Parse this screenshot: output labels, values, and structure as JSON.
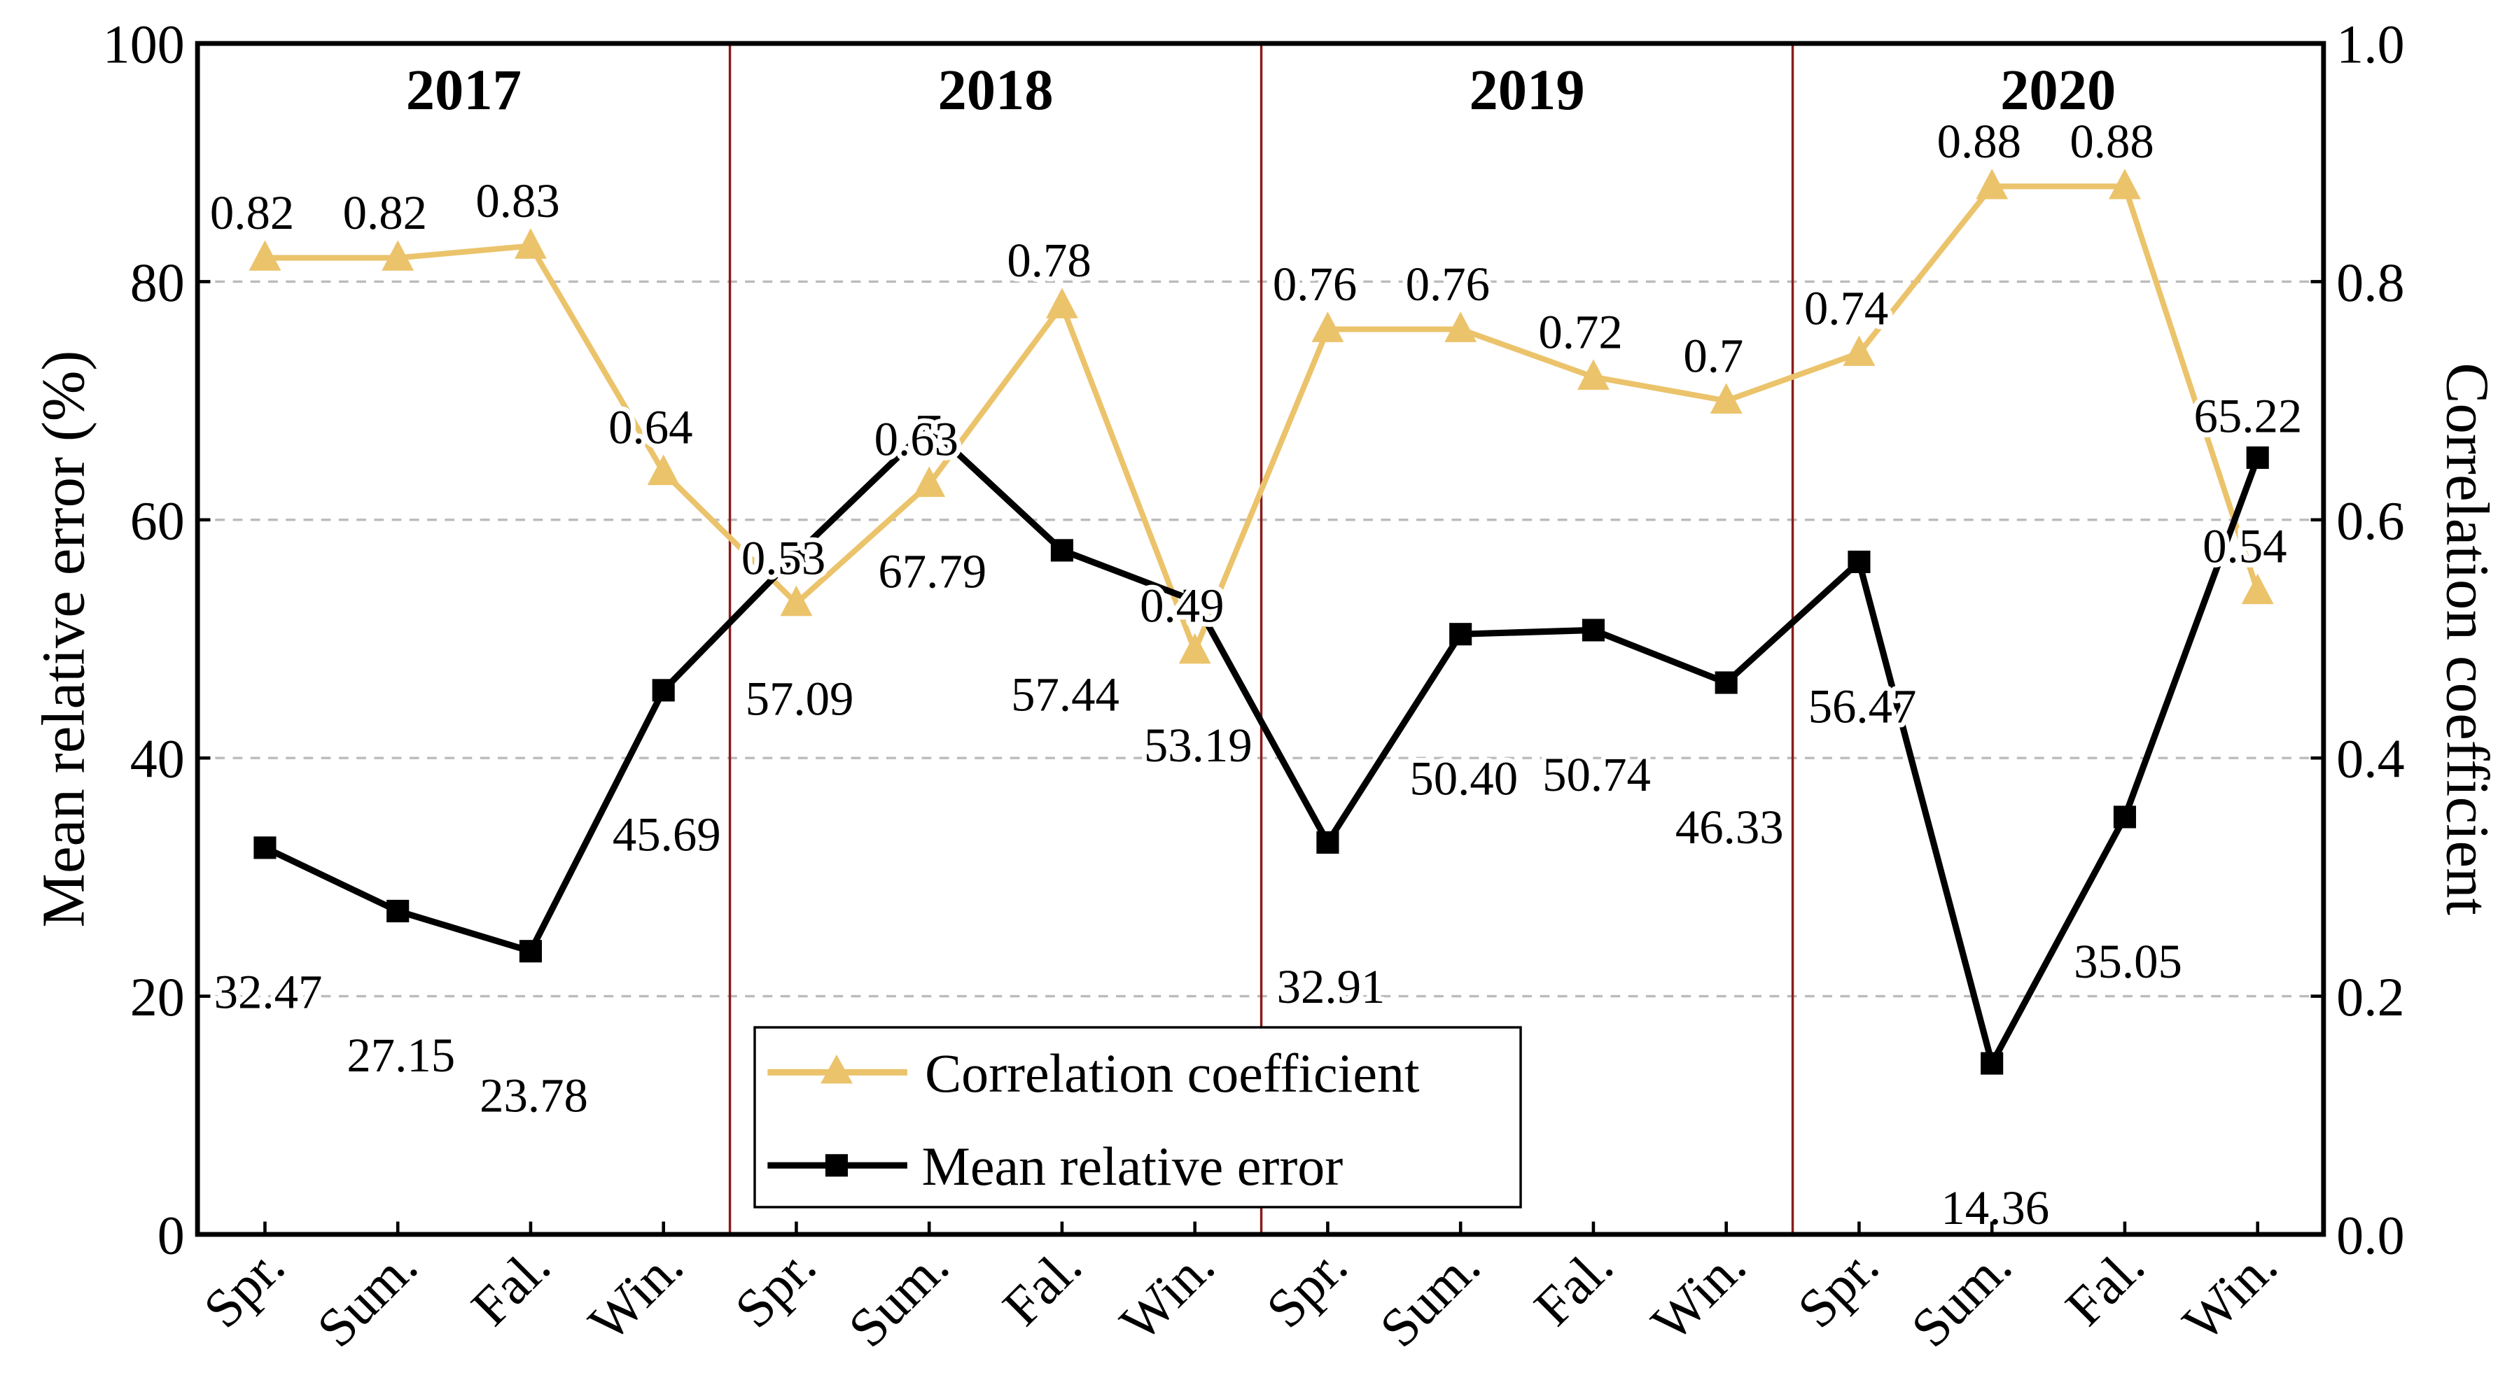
{
  "chart_data": {
    "type": "line",
    "years": [
      "2017",
      "2018",
      "2019",
      "2020"
    ],
    "categories": [
      "Spr.",
      "Sum.",
      "Fal.",
      "Win.",
      "Spr.",
      "Sum.",
      "Fal.",
      "Win.",
      "Spr.",
      "Sum.",
      "Fal.",
      "Win.",
      "Spr.",
      "Sum.",
      "Fal.",
      "Win."
    ],
    "ylabel": "Mean relative error (%)",
    "y2label": "Correlation coefficient",
    "ylim": [
      0,
      100
    ],
    "y2lim": [
      0,
      1.0
    ],
    "yticks": [
      "0",
      "20",
      "40",
      "60",
      "80",
      "100"
    ],
    "y2ticks": [
      "0.0",
      "0.2",
      "0.4",
      "0.6",
      "0.8",
      "1.0"
    ],
    "grid": "horizontal dashed",
    "legend_position": "bottom-center",
    "series": [
      {
        "name": "Correlation coefficient",
        "axis": "right",
        "marker": "triangle",
        "color": "#EBC36B",
        "values": [
          0.82,
          0.82,
          0.83,
          0.64,
          0.53,
          0.63,
          0.78,
          0.49,
          0.76,
          0.76,
          0.72,
          0.7,
          0.74,
          0.88,
          0.88,
          0.54
        ],
        "labels": [
          "0.82",
          "0.82",
          "0.83",
          "0.64",
          "0.53",
          "0.63",
          "0.78",
          "0.49",
          "0.76",
          "0.76",
          "0.72",
          "0.7",
          "0.74",
          "0.88",
          "0.88",
          "0.54"
        ]
      },
      {
        "name": "Mean relative error",
        "axis": "left",
        "marker": "square",
        "color": "#000000",
        "values": [
          32.47,
          27.15,
          23.78,
          45.69,
          57.09,
          67.79,
          57.44,
          53.19,
          32.91,
          50.4,
          50.74,
          46.33,
          56.47,
          14.36,
          35.05,
          65.22
        ],
        "labels": [
          "32.47",
          "27.15",
          "23.78",
          "45.69",
          "57.09",
          "67.79",
          "57.44",
          "53.19",
          "32.91",
          "50.40",
          "50.74",
          "46.33",
          "56.47",
          "14.36",
          "35.05",
          "65.22"
        ]
      }
    ],
    "divider_color": "#8B1A1A"
  }
}
